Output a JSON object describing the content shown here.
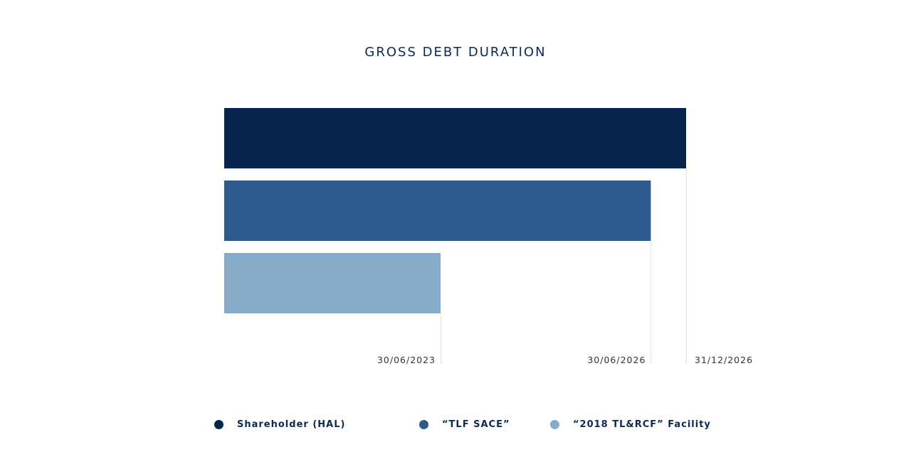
{
  "chart_data": {
    "type": "bar",
    "orientation": "horizontal",
    "title": "GROSS DEBT DURATION",
    "xlabel": "",
    "ylabel": "",
    "grid": false,
    "legend_position": "bottom",
    "series": [
      {
        "name": "Shareholder (HAL)",
        "end_date": "31/12/2026",
        "color": "#05254c"
      },
      {
        "name": "“TLF SACE”",
        "end_date": "30/06/2026",
        "color": "#2e5a8e"
      },
      {
        "name": "“2018 TL&RCF” Facility",
        "end_date": "30/06/2023",
        "color": "#89abca"
      }
    ],
    "tick_labels": [
      "30/06/2023",
      "30/06/2026",
      "31/12/2026"
    ]
  }
}
